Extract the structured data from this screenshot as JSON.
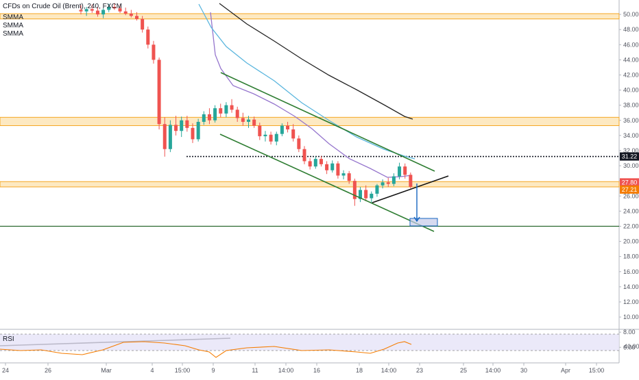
{
  "header": {
    "symbol": "CFDs on Crude Oil (Brent), 240, FXCM",
    "indicators": [
      "SMMA",
      "SMMA",
      "SMMA"
    ]
  },
  "rsi": {
    "label": "RSI",
    "level_label": "40.00"
  },
  "colors": {
    "bull": "#26a69a",
    "bear": "#ef5350",
    "zone_fill": "#fde9c2",
    "zone_line": "#f5a623",
    "support_line": "#1b5e20",
    "smma_fast": "#9575cd",
    "smma_mid": "#5bb6de",
    "smma_slow": "#222222",
    "rsi_line": "#f57c00",
    "rsi_band": "#e6e3f7",
    "arrow": "#1565c0"
  },
  "chart_data": {
    "type": "candlestick",
    "title": "CFDs on Crude Oil (Brent), 240, FXCM",
    "ylim": [
      4,
      51
    ],
    "y_ticks": [
      "50.00",
      "48.00",
      "46.00",
      "44.00",
      "42.00",
      "40.00",
      "38.00",
      "36.00",
      "34.00",
      "32.00",
      "30.00",
      "28.00",
      "26.00",
      "24.00",
      "22.00",
      "20.00",
      "18.00",
      "16.00",
      "14.00",
      "12.00",
      "10.00",
      "8.00",
      "6.00"
    ],
    "x_ticks": [
      "24",
      "26",
      "Mar",
      "4",
      "15:00",
      "9",
      "11",
      "14:00",
      "16",
      "18",
      "14:00",
      "23",
      "25",
      "14:00",
      "30",
      "Apr",
      "15:00"
    ],
    "price_labels": [
      {
        "value": 31.22,
        "text": "31.22",
        "color": "#131722"
      },
      {
        "value": 27.8,
        "text": "27.80",
        "color": "#ef5350"
      },
      {
        "value": 27.21,
        "text": "27.21",
        "color": "#f57c00"
      }
    ],
    "zones": [
      {
        "from": 49.4,
        "to": 50.1
      },
      {
        "from": 35.3,
        "to": 36.4
      },
      {
        "from": 27.2,
        "to": 27.9
      }
    ],
    "horizontal_lines": [
      {
        "value": 22.0,
        "style": "solid",
        "color": "#1b5e20"
      },
      {
        "value": 31.22,
        "style": "dotted",
        "color": "#131722"
      }
    ],
    "candles": [
      {
        "o": 50.6,
        "h": 51.2,
        "l": 50.0,
        "c": 50.4
      },
      {
        "o": 50.4,
        "h": 51.0,
        "l": 49.8,
        "c": 50.7
      },
      {
        "o": 50.7,
        "h": 51.3,
        "l": 50.2,
        "c": 50.5
      },
      {
        "o": 50.5,
        "h": 51.0,
        "l": 49.7,
        "c": 50.0
      },
      {
        "o": 50.0,
        "h": 50.8,
        "l": 49.5,
        "c": 50.6
      },
      {
        "o": 50.6,
        "h": 51.4,
        "l": 50.3,
        "c": 51.0
      },
      {
        "o": 51.0,
        "h": 51.5,
        "l": 50.6,
        "c": 50.8
      },
      {
        "o": 50.8,
        "h": 51.3,
        "l": 50.2,
        "c": 50.4
      },
      {
        "o": 50.4,
        "h": 50.9,
        "l": 49.9,
        "c": 50.1
      },
      {
        "o": 50.1,
        "h": 50.6,
        "l": 49.6,
        "c": 49.8
      },
      {
        "o": 49.8,
        "h": 50.3,
        "l": 49.2,
        "c": 49.4
      },
      {
        "o": 49.4,
        "h": 49.8,
        "l": 47.6,
        "c": 48.0
      },
      {
        "o": 48.0,
        "h": 48.4,
        "l": 45.5,
        "c": 46.0
      },
      {
        "o": 46.0,
        "h": 46.5,
        "l": 43.5,
        "c": 44.0
      },
      {
        "o": 44.0,
        "h": 44.3,
        "l": 34.8,
        "c": 35.5
      },
      {
        "o": 35.5,
        "h": 36.4,
        "l": 31.2,
        "c": 32.2
      },
      {
        "o": 32.2,
        "h": 36.0,
        "l": 31.8,
        "c": 35.4
      },
      {
        "o": 35.4,
        "h": 36.6,
        "l": 34.0,
        "c": 34.6
      },
      {
        "o": 34.6,
        "h": 36.5,
        "l": 33.8,
        "c": 36.0
      },
      {
        "o": 36.0,
        "h": 36.6,
        "l": 34.5,
        "c": 35.0
      },
      {
        "o": 35.0,
        "h": 35.6,
        "l": 33.0,
        "c": 33.5
      },
      {
        "o": 33.5,
        "h": 36.2,
        "l": 33.2,
        "c": 35.8
      },
      {
        "o": 35.8,
        "h": 37.2,
        "l": 35.4,
        "c": 36.8
      },
      {
        "o": 36.8,
        "h": 37.6,
        "l": 35.5,
        "c": 36.0
      },
      {
        "o": 36.0,
        "h": 38.0,
        "l": 35.7,
        "c": 37.6
      },
      {
        "o": 37.6,
        "h": 38.2,
        "l": 36.4,
        "c": 36.9
      },
      {
        "o": 36.9,
        "h": 38.4,
        "l": 36.4,
        "c": 38.0
      },
      {
        "o": 38.0,
        "h": 38.8,
        "l": 37.0,
        "c": 37.4
      },
      {
        "o": 37.4,
        "h": 37.8,
        "l": 35.8,
        "c": 36.3
      },
      {
        "o": 36.3,
        "h": 37.0,
        "l": 35.3,
        "c": 35.8
      },
      {
        "o": 35.8,
        "h": 36.6,
        "l": 35.0,
        "c": 36.1
      },
      {
        "o": 36.1,
        "h": 36.5,
        "l": 35.0,
        "c": 35.3
      },
      {
        "o": 35.3,
        "h": 35.7,
        "l": 33.4,
        "c": 33.9
      },
      {
        "o": 33.9,
        "h": 34.6,
        "l": 33.2,
        "c": 34.1
      },
      {
        "o": 34.1,
        "h": 34.5,
        "l": 32.8,
        "c": 33.2
      },
      {
        "o": 33.2,
        "h": 34.5,
        "l": 32.7,
        "c": 34.2
      },
      {
        "o": 34.2,
        "h": 35.6,
        "l": 33.9,
        "c": 35.3
      },
      {
        "o": 35.3,
        "h": 35.8,
        "l": 34.4,
        "c": 34.8
      },
      {
        "o": 34.8,
        "h": 35.5,
        "l": 33.2,
        "c": 33.6
      },
      {
        "o": 33.6,
        "h": 34.0,
        "l": 31.8,
        "c": 32.2
      },
      {
        "o": 32.2,
        "h": 32.6,
        "l": 30.2,
        "c": 30.6
      },
      {
        "o": 30.6,
        "h": 31.0,
        "l": 29.5,
        "c": 29.9
      },
      {
        "o": 29.9,
        "h": 31.2,
        "l": 29.6,
        "c": 30.9
      },
      {
        "o": 30.9,
        "h": 31.3,
        "l": 29.9,
        "c": 30.2
      },
      {
        "o": 30.2,
        "h": 30.6,
        "l": 28.9,
        "c": 29.4
      },
      {
        "o": 29.4,
        "h": 30.7,
        "l": 29.1,
        "c": 30.3
      },
      {
        "o": 30.3,
        "h": 30.6,
        "l": 28.3,
        "c": 28.7
      },
      {
        "o": 28.7,
        "h": 29.4,
        "l": 28.2,
        "c": 29.0
      },
      {
        "o": 29.0,
        "h": 29.3,
        "l": 27.6,
        "c": 28.0
      },
      {
        "o": 28.0,
        "h": 28.3,
        "l": 24.7,
        "c": 25.6
      },
      {
        "o": 25.6,
        "h": 27.2,
        "l": 25.2,
        "c": 26.8
      },
      {
        "o": 26.8,
        "h": 27.4,
        "l": 25.3,
        "c": 25.7
      },
      {
        "o": 25.7,
        "h": 26.6,
        "l": 25.0,
        "c": 26.3
      },
      {
        "o": 26.3,
        "h": 27.6,
        "l": 25.9,
        "c": 27.4
      },
      {
        "o": 27.4,
        "h": 28.2,
        "l": 27.0,
        "c": 27.8
      },
      {
        "o": 27.8,
        "h": 28.4,
        "l": 27.2,
        "c": 27.6
      },
      {
        "o": 27.6,
        "h": 29.0,
        "l": 27.3,
        "c": 28.6
      },
      {
        "o": 28.6,
        "h": 30.4,
        "l": 28.2,
        "c": 29.9
      },
      {
        "o": 29.9,
        "h": 30.3,
        "l": 28.3,
        "c": 28.8
      },
      {
        "o": 28.8,
        "h": 29.1,
        "l": 27.0,
        "c": 27.21
      }
    ],
    "smma": [
      {
        "name": "SMMA",
        "color": "#9575cd",
        "points": [
          [
            307,
            18
          ],
          [
            314,
            80
          ],
          [
            322,
            100
          ],
          [
            340,
            125
          ],
          [
            370,
            137
          ],
          [
            400,
            152
          ],
          [
            430,
            170
          ],
          [
            455,
            188
          ],
          [
            480,
            210
          ],
          [
            510,
            232
          ],
          [
            540,
            246
          ],
          [
            565,
            259
          ],
          [
            585,
            258
          ],
          [
            600,
            256
          ]
        ]
      },
      {
        "name": "SMMA",
        "color": "#5bb6de",
        "points": [
          [
            290,
            6
          ],
          [
            308,
            40
          ],
          [
            330,
            68
          ],
          [
            360,
            92
          ],
          [
            400,
            118
          ],
          [
            440,
            150
          ],
          [
            480,
            176
          ],
          [
            520,
            200
          ],
          [
            560,
            218
          ],
          [
            590,
            228
          ],
          [
            605,
            232
          ]
        ]
      },
      {
        "name": "SMMA",
        "color": "#222222",
        "points": [
          [
            320,
            5
          ],
          [
            360,
            35
          ],
          [
            400,
            60
          ],
          [
            440,
            86
          ],
          [
            480,
            110
          ],
          [
            520,
            131
          ],
          [
            560,
            153
          ],
          [
            590,
            170
          ],
          [
            602,
            174
          ]
        ]
      }
    ],
    "trendlines": [
      {
        "points": [
          [
            322,
            106
          ],
          [
            634,
            250
          ]
        ],
        "color": "#2e7d32"
      },
      {
        "points": [
          [
            321,
            196
          ],
          [
            633,
            338
          ]
        ],
        "color": "#2e7d32"
      },
      {
        "points": [
          [
            543,
            296
          ],
          [
            654,
            257
          ]
        ],
        "color": "#111111"
      },
      {
        "points": [
          [
            0,
            505
          ],
          [
            336,
            494
          ]
        ],
        "color": "#111111"
      }
    ],
    "arrow": {
      "x": 608,
      "from_y": 268,
      "to_y": 323
    },
    "target_box": {
      "x": 598,
      "y": 319,
      "w": 40,
      "h": 11
    },
    "rsi_line": [
      [
        0,
        510
      ],
      [
        30,
        512
      ],
      [
        60,
        511
      ],
      [
        90,
        516
      ],
      [
        120,
        518
      ],
      [
        150,
        511
      ],
      [
        180,
        500
      ],
      [
        210,
        499
      ],
      [
        240,
        501
      ],
      [
        270,
        505
      ],
      [
        290,
        511
      ],
      [
        305,
        514
      ],
      [
        315,
        522
      ],
      [
        330,
        512
      ],
      [
        360,
        508
      ],
      [
        400,
        506
      ],
      [
        440,
        512
      ],
      [
        480,
        511
      ],
      [
        520,
        514
      ],
      [
        540,
        516
      ],
      [
        560,
        510
      ],
      [
        580,
        501
      ],
      [
        590,
        499
      ],
      [
        600,
        503
      ]
    ]
  }
}
